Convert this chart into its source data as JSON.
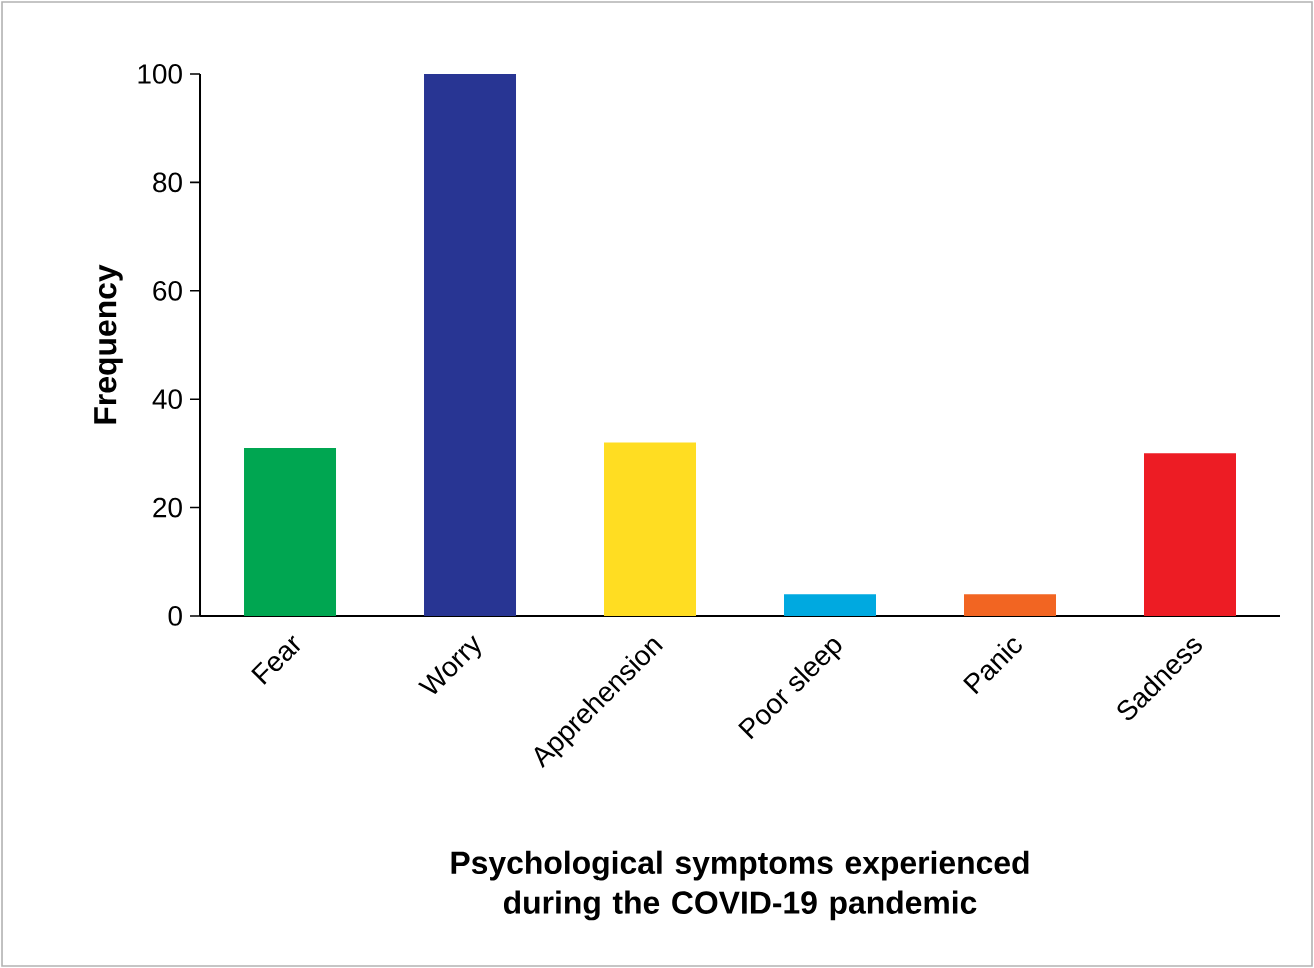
{
  "chart_data": {
    "type": "bar",
    "xlabel": "Psychological symptoms experienced during the COVID-19 pandemic",
    "ylabel": "Frequency",
    "categories": [
      "Fear",
      "Worry",
      "Apprehension",
      "Poor sleep",
      "Panic",
      "Sadness"
    ],
    "values": [
      31,
      100,
      32,
      4,
      4,
      30
    ],
    "colors": [
      "#00a651",
      "#283593",
      "#ffdd22",
      "#00a9e0",
      "#f26522",
      "#ed1c24"
    ],
    "ylim": [
      0,
      100
    ],
    "yticks": [
      0,
      20,
      40,
      60,
      80,
      100
    ]
  }
}
